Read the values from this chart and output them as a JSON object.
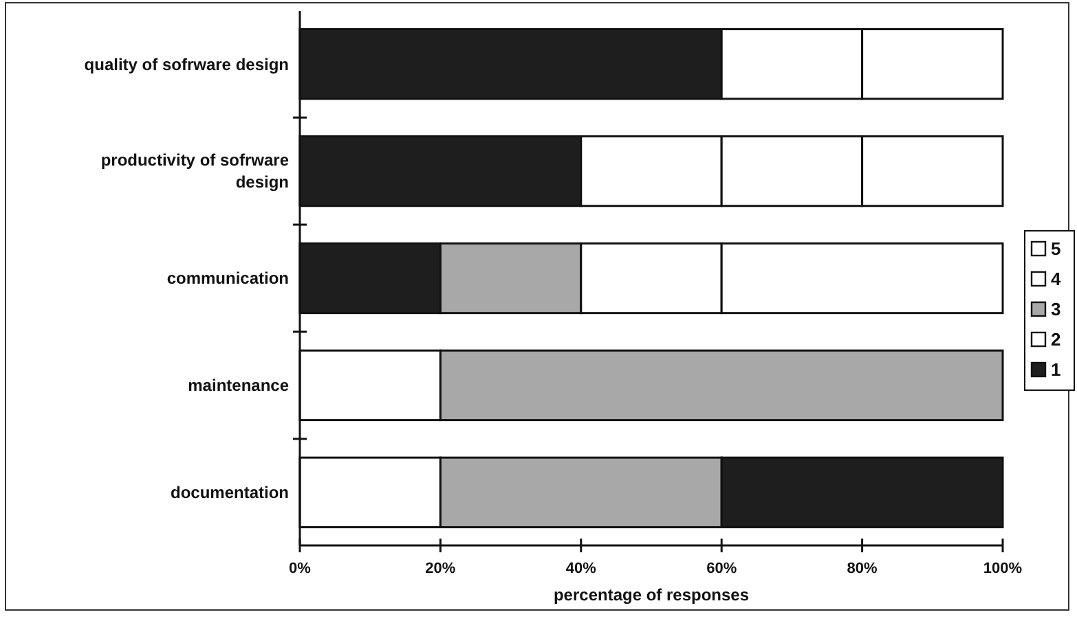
{
  "chart_data": {
    "type": "bar",
    "orientation": "horizontal",
    "stacked": true,
    "xlabel": "percentage of responses",
    "categories": [
      "quality of sofrware design",
      "productivity of sofrware design",
      "communication",
      "maintenance",
      "documentation"
    ],
    "series": [
      {
        "name": "1",
        "color": "#1e1e1e",
        "values": [
          60,
          40,
          20,
          0,
          0
        ]
      },
      {
        "name": "2",
        "color": "#ffffff",
        "values": [
          20,
          20,
          0,
          20,
          20
        ]
      },
      {
        "name": "3",
        "color": "#a8a8a8",
        "values": [
          0,
          0,
          20,
          80,
          40
        ]
      },
      {
        "name": "4",
        "color": "#ffffff",
        "colors": [
          "#ffffff",
          "#ffffff",
          "#ffffff",
          "#ffffff",
          "#1e1e1e"
        ],
        "values": [
          20,
          20,
          20,
          0,
          40
        ]
      },
      {
        "name": "5",
        "color": "#ffffff",
        "values": [
          0,
          20,
          40,
          0,
          0
        ]
      }
    ],
    "xlim": [
      0,
      100
    ],
    "xticks": [
      {
        "value": 0,
        "label": "0%"
      },
      {
        "value": 20,
        "label": "20%"
      },
      {
        "value": 40,
        "label": "40%"
      },
      {
        "value": 60,
        "label": "60%"
      },
      {
        "value": 80,
        "label": "80%"
      },
      {
        "value": 100,
        "label": "100%"
      }
    ],
    "grid": false,
    "legend": "right"
  }
}
